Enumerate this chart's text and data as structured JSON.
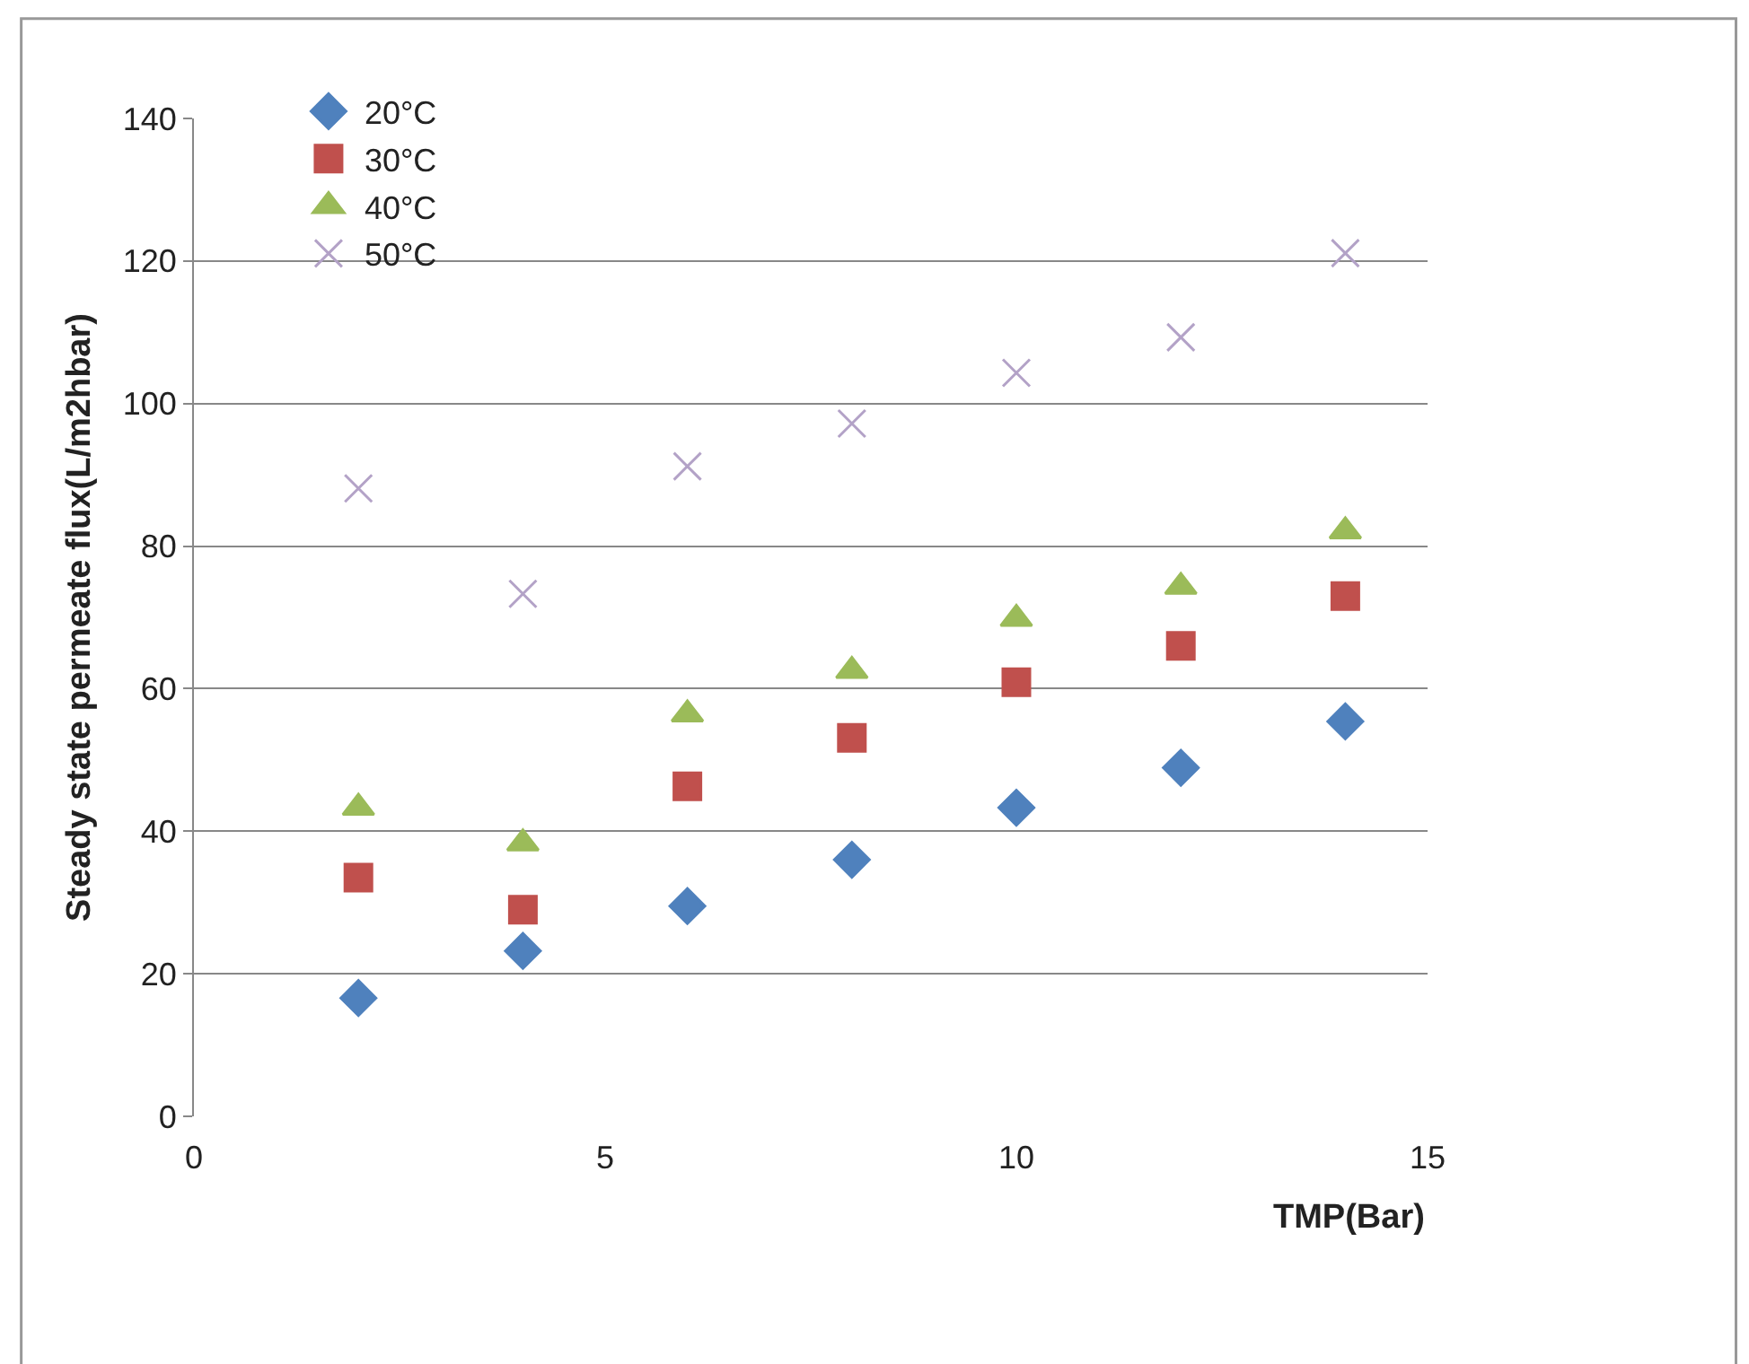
{
  "chart_data": {
    "type": "scatter",
    "xlabel": "TMP(Bar)",
    "ylabel": "Steady state permeate flux(L/m2hbar)",
    "x": [
      2,
      4,
      6,
      8,
      10,
      12,
      14
    ],
    "series": [
      {
        "name": "20°C",
        "color": "#4f81bd",
        "marker": "diamond",
        "values": [
          16.6,
          23.2,
          29.5,
          36.0,
          43.3,
          48.9,
          55.4
        ]
      },
      {
        "name": "30°C",
        "color": "#c0504d",
        "marker": "square",
        "values": [
          33.5,
          29.0,
          46.3,
          53.1,
          60.9,
          66.0,
          73.0
        ]
      },
      {
        "name": "40°C",
        "color": "#9bbb59",
        "marker": "triangle",
        "values": [
          43.3,
          38.3,
          56.4,
          62.5,
          69.8,
          74.3,
          82.1
        ]
      },
      {
        "name": "50°C",
        "color": "#b3a2c7",
        "marker": "cross",
        "values": [
          88.1,
          73.3,
          91.2,
          97.2,
          104.3,
          109.3,
          121.1
        ]
      }
    ],
    "xlim": [
      0,
      15
    ],
    "xticks": [
      0,
      5,
      10,
      15
    ],
    "ylim": [
      0,
      140
    ],
    "yticks": [
      0,
      20,
      40,
      60,
      80,
      100,
      120,
      140
    ],
    "grid": "y",
    "legend": "top left"
  }
}
